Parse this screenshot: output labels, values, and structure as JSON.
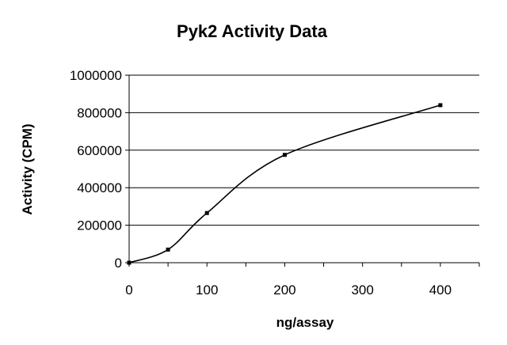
{
  "chart_data": {
    "type": "line",
    "title": "Pyk2 Activity Data",
    "xlabel": "ng/assay",
    "ylabel": "Activity (CPM)",
    "xlim": [
      0,
      450
    ],
    "ylim": [
      0,
      1000000
    ],
    "xticks": [
      0,
      100,
      200,
      300,
      400
    ],
    "xtick_labels": [
      "0",
      "100",
      "200",
      "300",
      "400"
    ],
    "yticks": [
      0,
      200000,
      400000,
      600000,
      800000,
      1000000
    ],
    "ytick_labels": [
      "0",
      "200000",
      "400000",
      "600000",
      "800000",
      "1000000"
    ],
    "grid": "horizontal",
    "legend": "none",
    "series": [
      {
        "x": [
          0,
          50,
          100,
          200,
          400
        ],
        "y": [
          0,
          70000,
          265000,
          575000,
          840000
        ],
        "color": "#000000",
        "marker": "square",
        "smooth": true
      }
    ]
  }
}
